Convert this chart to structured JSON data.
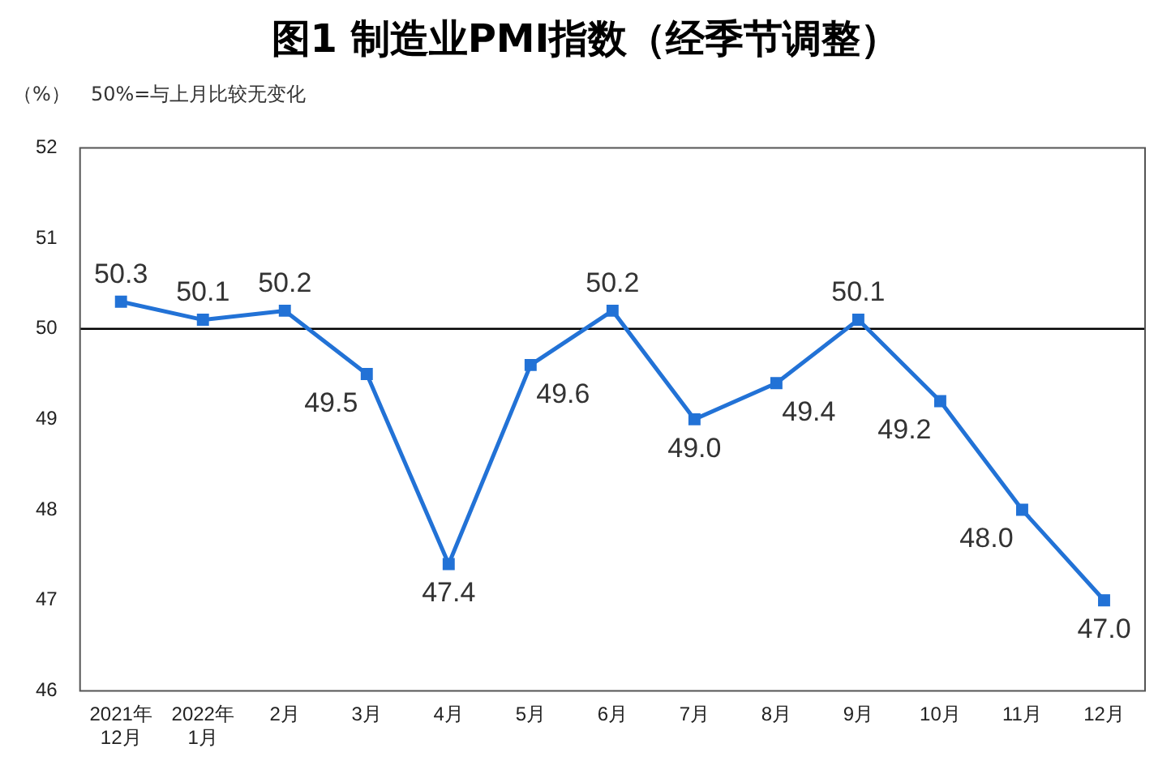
{
  "chart_data": {
    "type": "line",
    "title": "图1  制造业PMI指数（经季节调整）",
    "ylabel": "（%）",
    "annotations": [
      "50%=与上月比较无变化"
    ],
    "categories": [
      "2021年\n12月",
      "2022年\n1月",
      "2月",
      "3月",
      "4月",
      "5月",
      "6月",
      "7月",
      "8月",
      "9月",
      "10月",
      "11月",
      "12月"
    ],
    "series": [
      {
        "color": "#2272d6",
        "values": [
          50.3,
          50.1,
          50.2,
          49.5,
          47.4,
          49.6,
          50.2,
          49.0,
          49.4,
          50.1,
          49.2,
          48.0,
          47.0
        ],
        "value_labels": [
          "50.3",
          "50.1",
          "50.2",
          "49.5",
          "47.4",
          "49.6",
          "50.2",
          "49.0",
          "49.4",
          "50.1",
          "49.2",
          "48.0",
          "47.0"
        ]
      }
    ],
    "ylim": [
      46,
      52
    ],
    "yticks": [
      46,
      47,
      48,
      49,
      50,
      51,
      52
    ],
    "ref_lines": [
      {
        "axis": "y",
        "value": 50,
        "color": "#000000"
      }
    ],
    "grid": false,
    "legend": false,
    "marker": "square",
    "line_style": "solid"
  }
}
